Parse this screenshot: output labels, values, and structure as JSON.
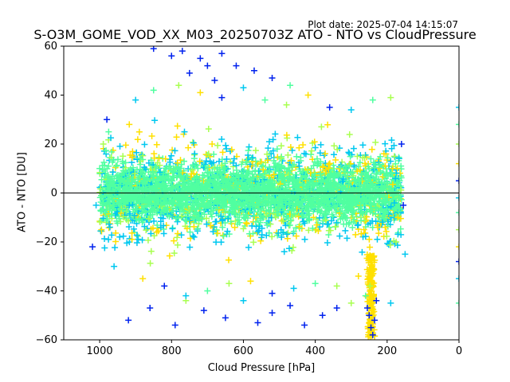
{
  "chart_data": {
    "type": "scatter",
    "plot_date": "Plot date: 2025-07-04 14:15:07",
    "title": "S-O3M_GOME_VOD_XX_M03_20250703Z ATO - NTO vs CloudPressure",
    "xlabel": "Cloud Pressure [hPa]",
    "ylabel": "ATO - NTO [DU]",
    "xlim": [
      1100,
      0
    ],
    "ylim": [
      -60,
      60
    ],
    "x_ticks": [
      1000,
      800,
      600,
      400,
      200,
      0
    ],
    "y_ticks": [
      -60,
      -40,
      -20,
      0,
      20,
      40,
      60
    ],
    "reference_line_y": 0,
    "marker": "+",
    "grid": false,
    "density_colors": [
      "#0022ee",
      "#00c8f0",
      "#50ffa0",
      "#a8ff50",
      "#ffe000"
    ],
    "cluster": {
      "x_range": [
        1000,
        160
      ],
      "core_y_range": [
        -20,
        20
      ],
      "envelope_y_range": [
        -45,
        40
      ]
    },
    "points": [
      [
        920,
        -52
      ],
      [
        860,
        -47
      ],
      [
        790,
        -54
      ],
      [
        760,
        -44
      ],
      [
        710,
        -48
      ],
      [
        650,
        -51
      ],
      [
        600,
        -44
      ],
      [
        560,
        -53
      ],
      [
        520,
        -49
      ],
      [
        470,
        -46
      ],
      [
        430,
        -54
      ],
      [
        380,
        -50
      ],
      [
        340,
        -47
      ],
      [
        300,
        -45
      ],
      [
        850,
        59
      ],
      [
        800,
        56
      ],
      [
        770,
        58
      ],
      [
        720,
        55
      ],
      [
        660,
        57
      ],
      [
        620,
        52
      ],
      [
        570,
        50
      ],
      [
        520,
        47
      ],
      [
        470,
        44
      ],
      [
        700,
        52
      ],
      [
        750,
        49
      ],
      [
        680,
        46
      ],
      [
        900,
        38
      ],
      [
        850,
        42
      ],
      [
        780,
        44
      ],
      [
        720,
        41
      ],
      [
        660,
        39
      ],
      [
        600,
        43
      ],
      [
        540,
        38
      ],
      [
        480,
        36
      ],
      [
        420,
        40
      ],
      [
        360,
        35
      ],
      [
        300,
        34
      ],
      [
        240,
        38
      ],
      [
        190,
        39
      ],
      [
        880,
        -35
      ],
      [
        820,
        -38
      ],
      [
        760,
        -42
      ],
      [
        700,
        -40
      ],
      [
        640,
        -37
      ],
      [
        580,
        -36
      ],
      [
        520,
        -41
      ],
      [
        460,
        -39
      ],
      [
        400,
        -37
      ],
      [
        340,
        -38
      ],
      [
        280,
        -34
      ],
      [
        230,
        -44
      ],
      [
        190,
        -45
      ],
      [
        250,
        -50
      ],
      [
        245,
        -55
      ],
      [
        240,
        -58
      ],
      [
        255,
        -47
      ],
      [
        235,
        -52
      ],
      [
        260,
        -42
      ],
      [
        248,
        -38
      ],
      [
        242,
        -30
      ],
      [
        1020,
        -22
      ],
      [
        1010,
        -5
      ],
      [
        1000,
        10
      ],
      [
        990,
        20
      ],
      [
        995,
        -15
      ],
      [
        980,
        30
      ],
      [
        960,
        -30
      ],
      [
        975,
        25
      ],
      [
        180,
        15
      ],
      [
        170,
        -10
      ],
      [
        160,
        20
      ],
      [
        150,
        -25
      ],
      [
        165,
        5
      ],
      [
        175,
        -20
      ],
      [
        185,
        10
      ],
      [
        155,
        -5
      ],
      [
        0,
        35
      ],
      [
        0,
        28
      ],
      [
        0,
        20
      ],
      [
        0,
        12
      ],
      [
        0,
        5
      ],
      [
        0,
        -2
      ],
      [
        0,
        -8
      ],
      [
        0,
        -15
      ],
      [
        0,
        -22
      ],
      [
        0,
        -28
      ],
      [
        0,
        -35
      ],
      [
        0,
        -45
      ]
    ]
  }
}
